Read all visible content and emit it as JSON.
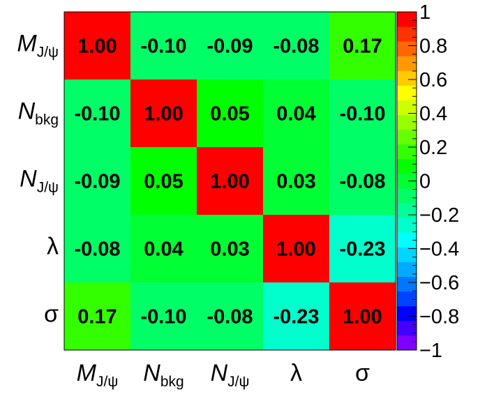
{
  "chart_data": {
    "type": "heatmap",
    "title": "",
    "row_labels": [
      {
        "main": "M",
        "sub": "J/ψ",
        "italic": true
      },
      {
        "main": "N",
        "sub": "bkg",
        "italic": true
      },
      {
        "main": "N",
        "sub": "J/ψ",
        "italic": true
      },
      {
        "main": "λ",
        "sub": "",
        "italic": false
      },
      {
        "main": "σ",
        "sub": "",
        "italic": false
      }
    ],
    "col_labels": [
      {
        "main": "M",
        "sub": "J/ψ",
        "italic": true
      },
      {
        "main": "N",
        "sub": "bkg",
        "italic": true
      },
      {
        "main": "N",
        "sub": "J/ψ",
        "italic": true
      },
      {
        "main": "λ",
        "sub": "",
        "italic": false
      },
      {
        "main": "σ",
        "sub": "",
        "italic": false
      }
    ],
    "matrix": [
      [
        1.0,
        -0.1,
        -0.09,
        -0.08,
        0.17
      ],
      [
        -0.1,
        1.0,
        0.05,
        0.04,
        -0.1
      ],
      [
        -0.09,
        0.05,
        1.0,
        0.03,
        -0.08
      ],
      [
        -0.08,
        0.04,
        0.03,
        1.0,
        -0.23
      ],
      [
        0.17,
        -0.1,
        -0.08,
        -0.23,
        1.0
      ]
    ],
    "value_labels": [
      [
        "1.00",
        "-0.10",
        "-0.09",
        "-0.08",
        "0.17"
      ],
      [
        "-0.10",
        "1.00",
        "0.05",
        "0.04",
        "-0.10"
      ],
      [
        "-0.09",
        "0.05",
        "1.00",
        "0.03",
        "-0.08"
      ],
      [
        "-0.08",
        "0.04",
        "0.03",
        "1.00",
        "-0.23"
      ],
      [
        "0.17",
        "-0.10",
        "-0.08",
        "-0.23",
        "1.00"
      ]
    ],
    "zlim": [
      -1,
      1
    ],
    "colorbar": {
      "ticks": [
        1,
        0.8,
        0.6,
        0.4,
        0.2,
        0,
        -0.2,
        -0.4,
        -0.6,
        -0.8,
        -1
      ],
      "tick_labels": [
        "1",
        "0.8",
        "0.6",
        "0.4",
        "0.2",
        "0",
        "−0.2",
        "−0.4",
        "−0.6",
        "−0.8",
        "−1"
      ],
      "placement": "right"
    },
    "palette": [
      "#7f00ff",
      "#4400ff",
      "#0000ff",
      "#0044ff",
      "#0077ff",
      "#00aaff",
      "#00d5ff",
      "#00ffff",
      "#00ffcc",
      "#00ff99",
      "#00ff66",
      "#00ff33",
      "#00ff00",
      "#33ff00",
      "#66ff00",
      "#99ff00",
      "#ccff00",
      "#ffff00",
      "#ffcc00",
      "#ff9900",
      "#ff6600",
      "#ff3300",
      "#ff0000"
    ],
    "grid": false
  }
}
